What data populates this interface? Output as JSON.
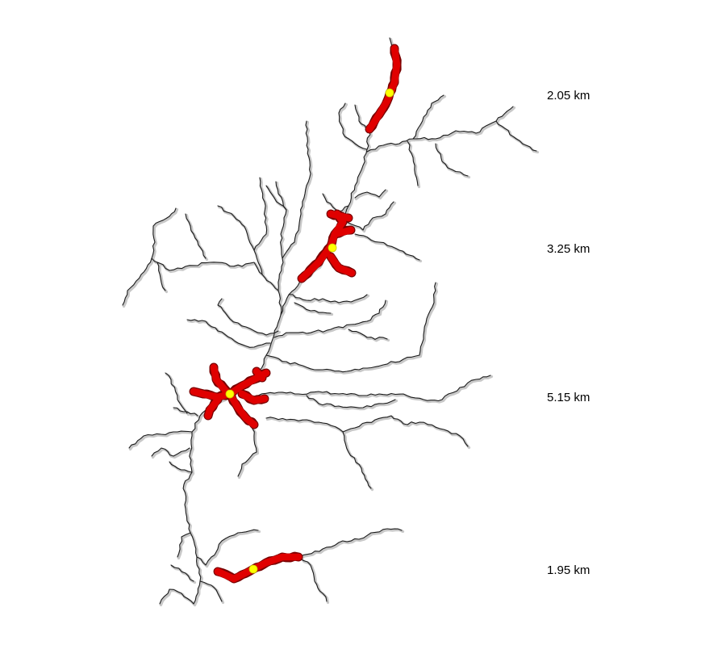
{
  "colors": {
    "background": "#ffffff",
    "stream": "#1a1a1a",
    "stream_shadow": "#c8c8c8",
    "highlight": "#e00000",
    "highlight_outline": "#7a0000",
    "site_point": "#ffff00"
  },
  "sites": [
    {
      "distance_label": "2.05 km"
    },
    {
      "distance_label": "3.25 km"
    },
    {
      "distance_label": "5.15 km"
    },
    {
      "distance_label": "1.95 km"
    }
  ]
}
